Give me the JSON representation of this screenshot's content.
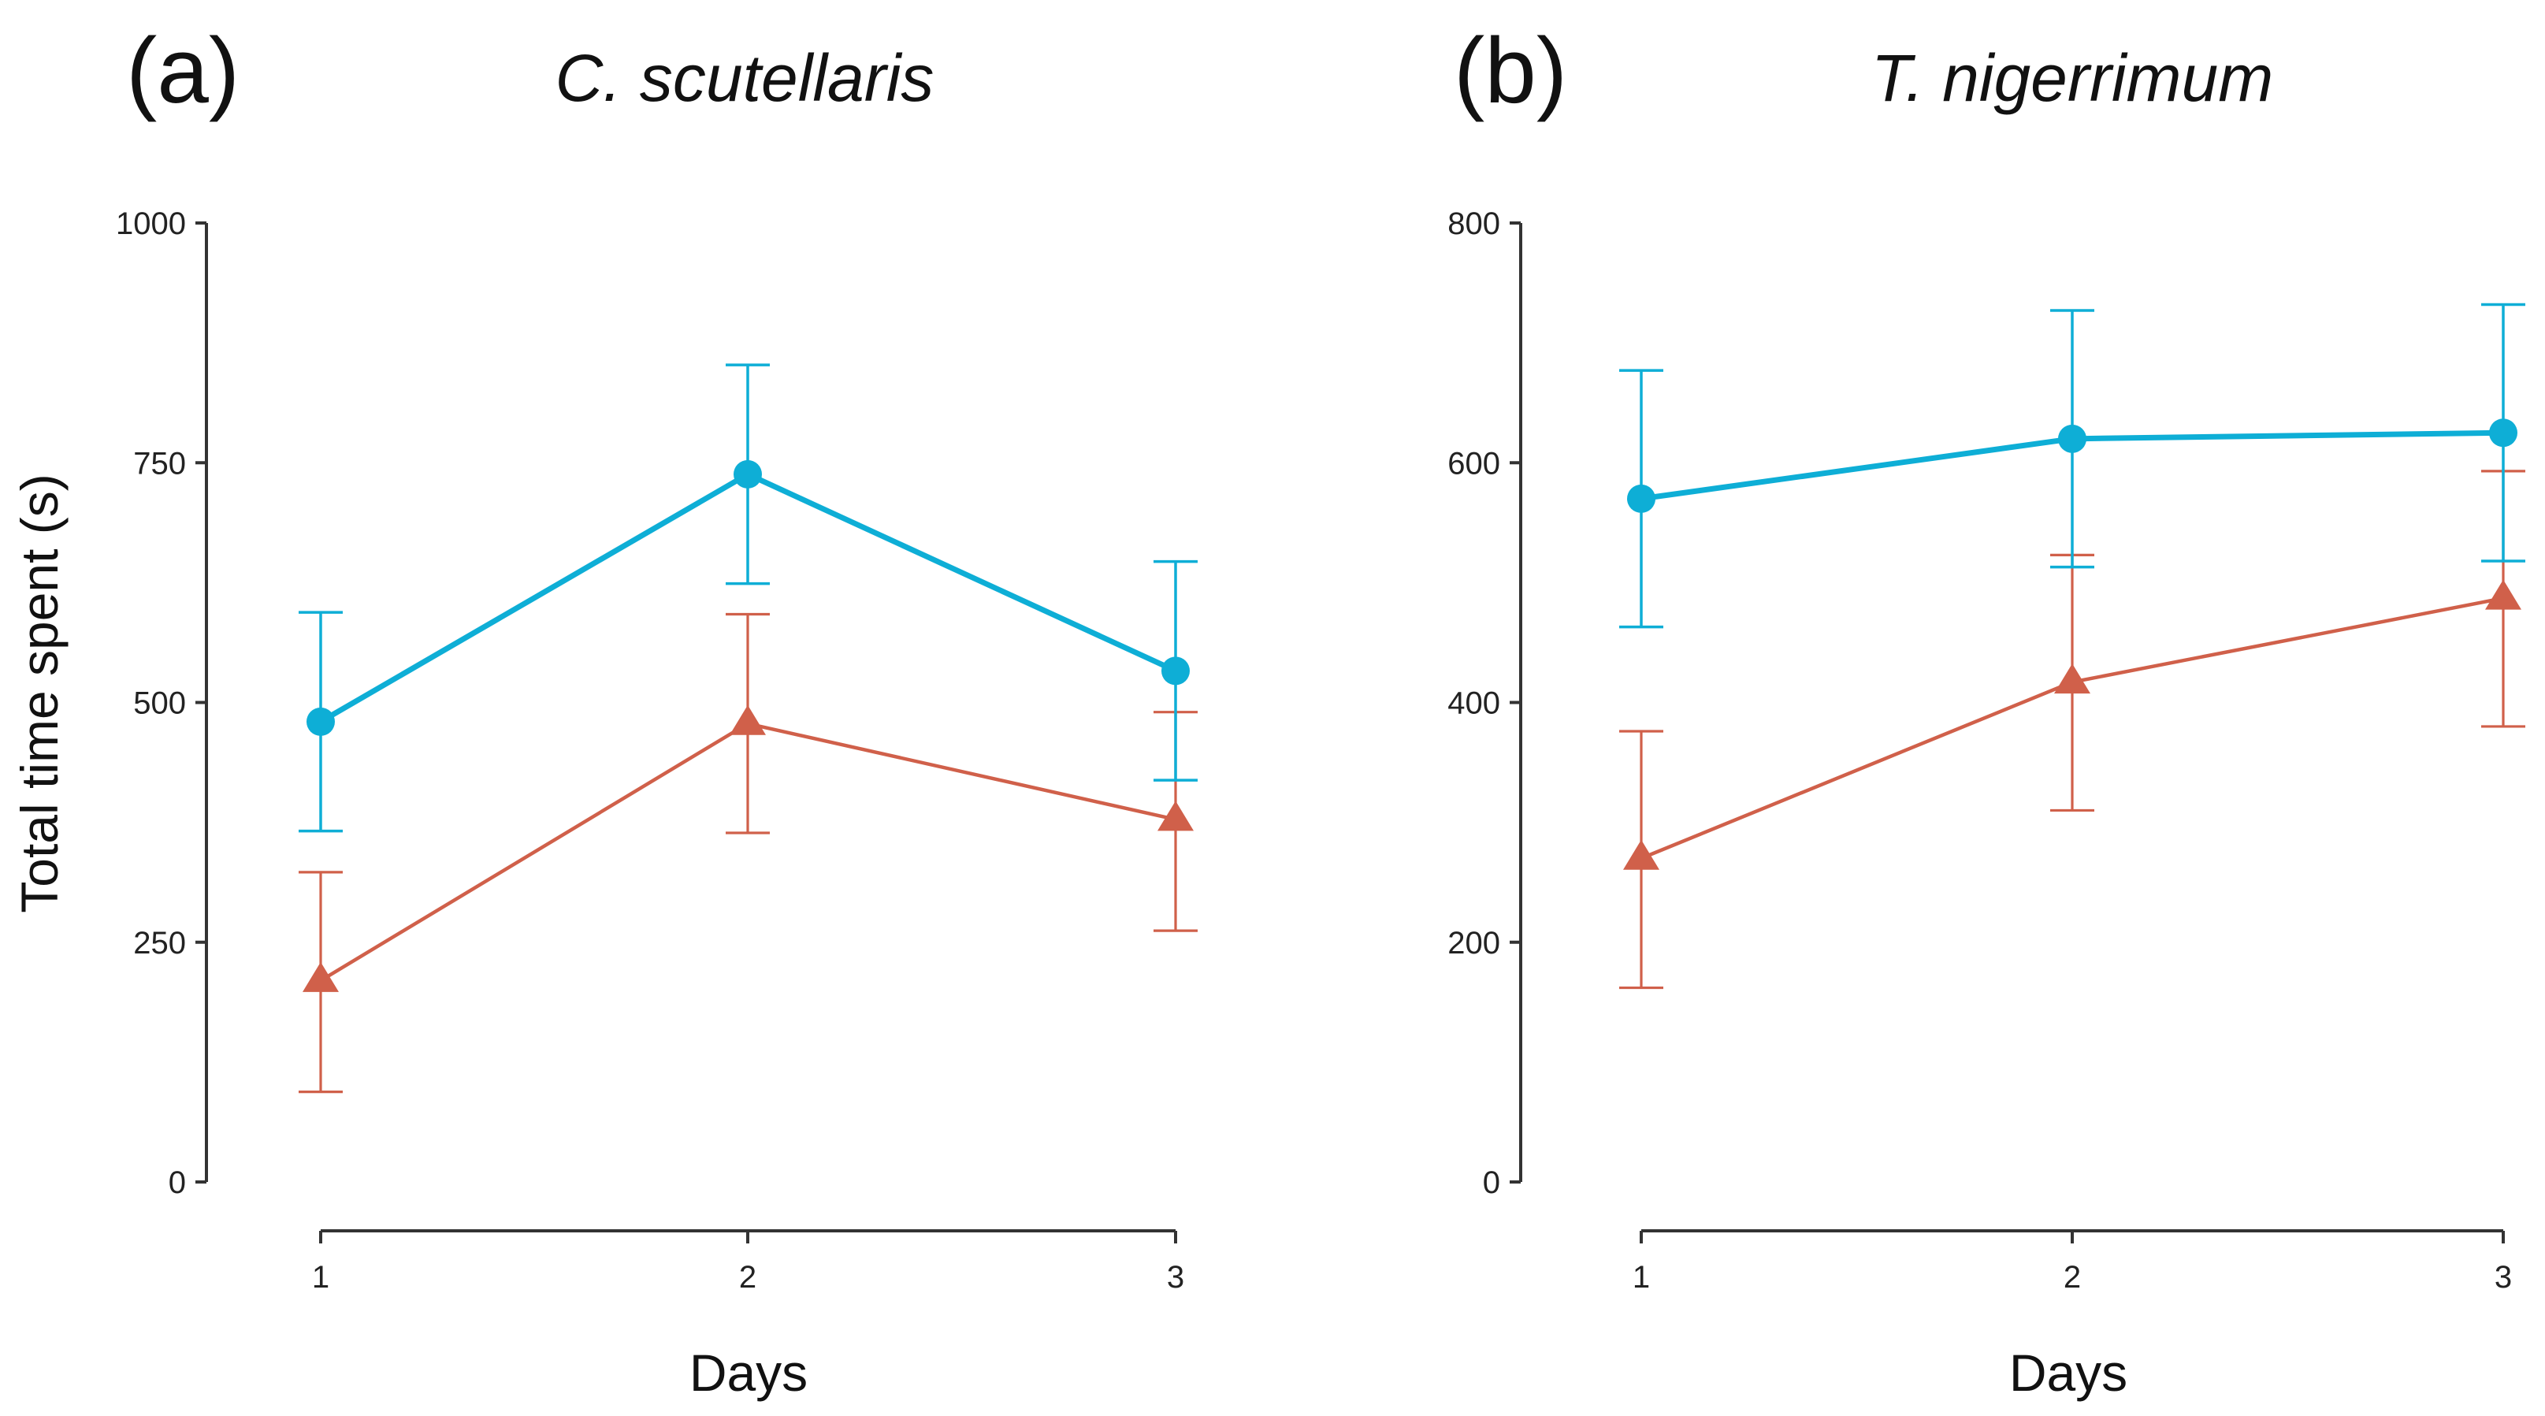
{
  "chart_data": [
    {
      "type": "line",
      "panel_label": "(a)",
      "title": "C. scutellaris",
      "xlabel": "Days",
      "ylabel": "Total time spent (s)",
      "categories": [
        "1",
        "2",
        "3"
      ],
      "x": [
        1,
        2,
        3
      ],
      "ylim": [
        0,
        1000
      ],
      "yticks": [
        0,
        250,
        500,
        750,
        1000
      ],
      "ytick_labels": [
        "0",
        "250",
        "500",
        "750",
        "1000"
      ],
      "grid": false,
      "legend": "none",
      "series": [
        {
          "name": "circle series",
          "marker": "circle",
          "color": "#0EAED6",
          "values": [
            480,
            738,
            533
          ],
          "err_lo": [
            366,
            624,
            419
          ],
          "err_hi": [
            594,
            852,
            647
          ]
        },
        {
          "name": "triangle series",
          "marker": "triangle",
          "color": "#D0604A",
          "values": [
            210,
            478,
            378
          ],
          "err_lo": [
            94,
            364,
            262
          ],
          "err_hi": [
            323,
            592,
            490
          ]
        }
      ]
    },
    {
      "type": "line",
      "panel_label": "(b)",
      "title": "T. nigerrimum",
      "xlabel": "Days",
      "ylabel": "",
      "categories": [
        "1",
        "2",
        "3"
      ],
      "x": [
        1,
        2,
        3
      ],
      "ylim": [
        0,
        800
      ],
      "yticks": [
        0,
        200,
        400,
        600,
        800
      ],
      "ytick_labels": [
        "0",
        "200",
        "400",
        "600",
        "800"
      ],
      "grid": false,
      "legend": "none",
      "series": [
        {
          "name": "circle series",
          "marker": "circle",
          "color": "#0EAED6",
          "values": [
            570,
            620,
            625
          ],
          "err_lo": [
            463,
            513,
            518
          ],
          "err_hi": [
            677,
            727,
            732
          ]
        },
        {
          "name": "triangle series",
          "marker": "triangle",
          "color": "#D0604A",
          "values": [
            270,
            417,
            487
          ],
          "err_lo": [
            162,
            310,
            380
          ],
          "err_hi": [
            376,
            523,
            593
          ]
        }
      ]
    }
  ]
}
